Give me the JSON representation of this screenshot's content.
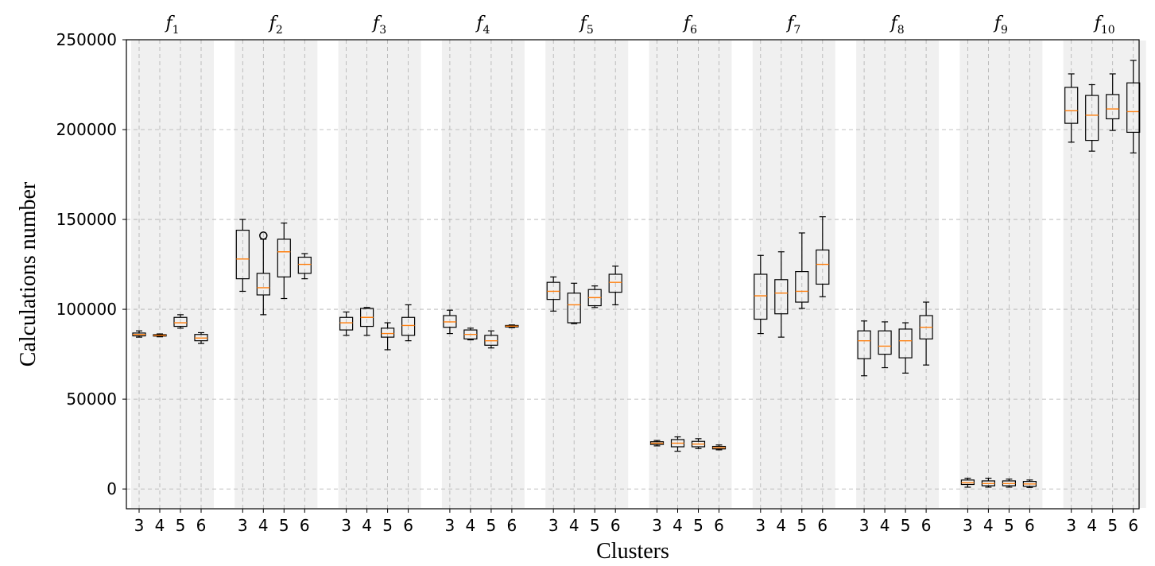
{
  "chart_data": {
    "type": "box",
    "xlabel": "Clusters",
    "ylabel": "Calculations number",
    "ylim": [
      -11000,
      250000
    ],
    "yticks": [
      0,
      50000,
      100000,
      150000,
      200000,
      250000
    ],
    "cluster_labels": [
      "3",
      "4",
      "5",
      "6"
    ],
    "grid": true,
    "colors": {
      "box": "#000000",
      "median": "#ff7f0e",
      "panel": "#f0f0f0",
      "grid": "#b0b0b0"
    },
    "groups": [
      {
        "name": "f",
        "sub": "1",
        "boxes": [
          {
            "cluster": "3",
            "whislo": 84500,
            "q1": 85200,
            "med": 86000,
            "q3": 86800,
            "whishi": 88000,
            "fliers": []
          },
          {
            "cluster": "4",
            "whislo": 84700,
            "q1": 85100,
            "med": 85500,
            "q3": 85900,
            "whishi": 86300,
            "fliers": []
          },
          {
            "cluster": "5",
            "whislo": 89500,
            "q1": 90500,
            "med": 92500,
            "q3": 95500,
            "whishi": 97000,
            "fliers": []
          },
          {
            "cluster": "6",
            "whislo": 81000,
            "q1": 82500,
            "med": 84000,
            "q3": 86000,
            "whishi": 87000,
            "fliers": []
          }
        ]
      },
      {
        "name": "f",
        "sub": "2",
        "boxes": [
          {
            "cluster": "3",
            "whislo": 110000,
            "q1": 117000,
            "med": 128000,
            "q3": 144000,
            "whishi": 150000,
            "fliers": []
          },
          {
            "cluster": "4",
            "whislo": 97000,
            "q1": 108000,
            "med": 112000,
            "q3": 120000,
            "whishi": 139000,
            "fliers": [
              141000
            ]
          },
          {
            "cluster": "5",
            "whislo": 106000,
            "q1": 118000,
            "med": 132000,
            "q3": 139000,
            "whishi": 148000,
            "fliers": []
          },
          {
            "cluster": "6",
            "whislo": 117000,
            "q1": 120000,
            "med": 125000,
            "q3": 129000,
            "whishi": 131000,
            "fliers": []
          }
        ]
      },
      {
        "name": "f",
        "sub": "3",
        "boxes": [
          {
            "cluster": "3",
            "whislo": 85500,
            "q1": 88500,
            "med": 92500,
            "q3": 95500,
            "whishi": 98500,
            "fliers": []
          },
          {
            "cluster": "4",
            "whislo": 85500,
            "q1": 90500,
            "med": 95500,
            "q3": 100500,
            "whishi": 101000,
            "fliers": []
          },
          {
            "cluster": "5",
            "whislo": 77500,
            "q1": 84500,
            "med": 86500,
            "q3": 89500,
            "whishi": 92500,
            "fliers": []
          },
          {
            "cluster": "6",
            "whislo": 82500,
            "q1": 85500,
            "med": 91000,
            "q3": 95500,
            "whishi": 102500,
            "fliers": []
          }
        ]
      },
      {
        "name": "f",
        "sub": "4",
        "boxes": [
          {
            "cluster": "3",
            "whislo": 86500,
            "q1": 90000,
            "med": 93000,
            "q3": 96500,
            "whishi": 99500,
            "fliers": []
          },
          {
            "cluster": "4",
            "whislo": 83000,
            "q1": 83500,
            "med": 86000,
            "q3": 88500,
            "whishi": 89500,
            "fliers": []
          },
          {
            "cluster": "5",
            "whislo": 78500,
            "q1": 80000,
            "med": 82500,
            "q3": 85500,
            "whishi": 88000,
            "fliers": []
          },
          {
            "cluster": "6",
            "whislo": 89800,
            "q1": 90200,
            "med": 90600,
            "q3": 91000,
            "whishi": 91300,
            "fliers": []
          }
        ]
      },
      {
        "name": "f",
        "sub": "5",
        "boxes": [
          {
            "cluster": "3",
            "whislo": 99000,
            "q1": 105500,
            "med": 110000,
            "q3": 115000,
            "whishi": 118000,
            "fliers": []
          },
          {
            "cluster": "4",
            "whislo": 92000,
            "q1": 92500,
            "med": 102500,
            "q3": 109000,
            "whishi": 114500,
            "fliers": []
          },
          {
            "cluster": "5",
            "whislo": 101000,
            "q1": 102000,
            "med": 106500,
            "q3": 111000,
            "whishi": 113000,
            "fliers": []
          },
          {
            "cluster": "6",
            "whislo": 102500,
            "q1": 109500,
            "med": 115000,
            "q3": 119500,
            "whishi": 124000,
            "fliers": []
          }
        ]
      },
      {
        "name": "f",
        "sub": "6",
        "boxes": [
          {
            "cluster": "3",
            "whislo": 24000,
            "q1": 24800,
            "med": 25500,
            "q3": 26300,
            "whishi": 27000,
            "fliers": []
          },
          {
            "cluster": "4",
            "whislo": 21000,
            "q1": 23500,
            "med": 25500,
            "q3": 27500,
            "whishi": 29000,
            "fliers": []
          },
          {
            "cluster": "5",
            "whislo": 22500,
            "q1": 23500,
            "med": 25000,
            "q3": 26500,
            "whishi": 28000,
            "fliers": []
          },
          {
            "cluster": "6",
            "whislo": 21800,
            "q1": 22300,
            "med": 23000,
            "q3": 23700,
            "whishi": 24500,
            "fliers": []
          }
        ]
      },
      {
        "name": "f",
        "sub": "7",
        "boxes": [
          {
            "cluster": "3",
            "whislo": 86500,
            "q1": 94500,
            "med": 107500,
            "q3": 119500,
            "whishi": 130000,
            "fliers": []
          },
          {
            "cluster": "4",
            "whislo": 84500,
            "q1": 97500,
            "med": 109000,
            "q3": 116500,
            "whishi": 132000,
            "fliers": []
          },
          {
            "cluster": "5",
            "whislo": 100500,
            "q1": 104000,
            "med": 110000,
            "q3": 121000,
            "whishi": 142500,
            "fliers": []
          },
          {
            "cluster": "6",
            "whislo": 107000,
            "q1": 114000,
            "med": 125000,
            "q3": 133000,
            "whishi": 151500,
            "fliers": []
          }
        ]
      },
      {
        "name": "f",
        "sub": "8",
        "boxes": [
          {
            "cluster": "3",
            "whislo": 63000,
            "q1": 72500,
            "med": 82500,
            "q3": 88000,
            "whishi": 93500,
            "fliers": []
          },
          {
            "cluster": "4",
            "whislo": 67500,
            "q1": 75000,
            "med": 79500,
            "q3": 88000,
            "whishi": 93000,
            "fliers": []
          },
          {
            "cluster": "5",
            "whislo": 64500,
            "q1": 73000,
            "med": 82500,
            "q3": 89000,
            "whishi": 92500,
            "fliers": []
          },
          {
            "cluster": "6",
            "whislo": 69000,
            "q1": 83500,
            "med": 90000,
            "q3": 96500,
            "whishi": 104000,
            "fliers": []
          }
        ]
      },
      {
        "name": "f",
        "sub": "9",
        "boxes": [
          {
            "cluster": "3",
            "whislo": 1000,
            "q1": 2500,
            "med": 3500,
            "q3": 5000,
            "whishi": 6000,
            "fliers": []
          },
          {
            "cluster": "4",
            "whislo": 1000,
            "q1": 1800,
            "med": 3000,
            "q3": 4500,
            "whishi": 6000,
            "fliers": []
          },
          {
            "cluster": "5",
            "whislo": 1000,
            "q1": 1800,
            "med": 3000,
            "q3": 4500,
            "whishi": 5500,
            "fliers": []
          },
          {
            "cluster": "6",
            "whislo": 800,
            "q1": 1500,
            "med": 2800,
            "q3": 4200,
            "whishi": 5000,
            "fliers": []
          }
        ]
      },
      {
        "name": "f",
        "sub": "10",
        "boxes": [
          {
            "cluster": "3",
            "whislo": 193000,
            "q1": 203500,
            "med": 210500,
            "q3": 223500,
            "whishi": 231000,
            "fliers": []
          },
          {
            "cluster": "4",
            "whislo": 188000,
            "q1": 194000,
            "med": 208000,
            "q3": 219000,
            "whishi": 225000,
            "fliers": []
          },
          {
            "cluster": "5",
            "whislo": 199500,
            "q1": 206000,
            "med": 211500,
            "q3": 219500,
            "whishi": 231000,
            "fliers": []
          },
          {
            "cluster": "6",
            "whislo": 187000,
            "q1": 198500,
            "med": 210000,
            "q3": 226000,
            "whishi": 238500,
            "fliers": []
          }
        ]
      }
    ]
  }
}
